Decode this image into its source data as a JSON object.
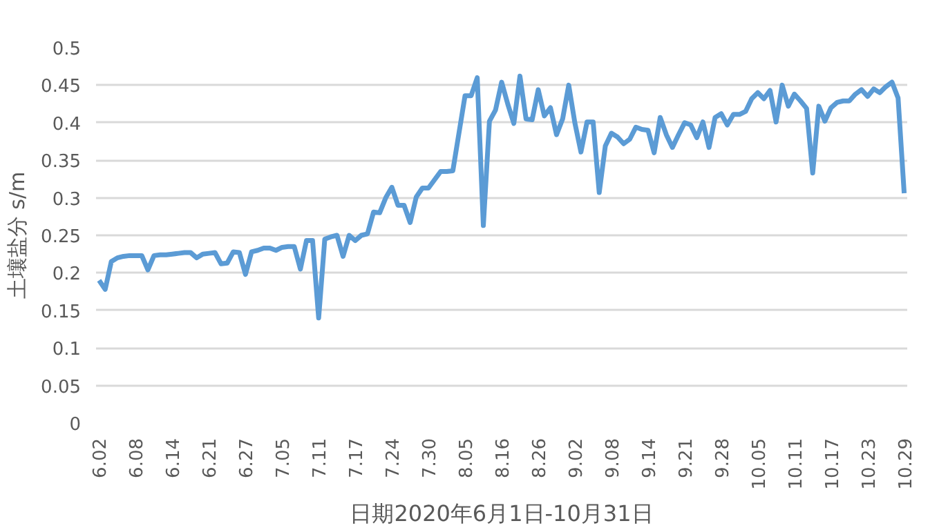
{
  "chart_data": {
    "type": "line",
    "xlabel": "日期2020年6月1日-10月31日",
    "ylabel": "土壤盐分 s/m",
    "categories": [
      "6.02",
      null,
      null,
      null,
      null,
      null,
      "6.08",
      null,
      null,
      null,
      null,
      null,
      "6.14",
      null,
      null,
      null,
      null,
      null,
      "6.21",
      null,
      null,
      null,
      null,
      null,
      "6.27",
      null,
      null,
      null,
      null,
      null,
      "7.05",
      null,
      null,
      null,
      null,
      null,
      "7.11",
      null,
      null,
      null,
      null,
      null,
      "7.17",
      null,
      null,
      null,
      null,
      null,
      "7.24",
      null,
      null,
      null,
      null,
      null,
      "7.30",
      null,
      null,
      null,
      null,
      null,
      "8.05",
      null,
      null,
      null,
      null,
      null,
      "8.16",
      null,
      null,
      null,
      null,
      null,
      "8.26",
      null,
      null,
      null,
      null,
      null,
      "9.02",
      null,
      null,
      null,
      null,
      null,
      "9.08",
      null,
      null,
      null,
      null,
      null,
      "9.14",
      null,
      null,
      null,
      null,
      null,
      "9.21",
      null,
      null,
      null,
      null,
      null,
      "9.28",
      null,
      null,
      null,
      null,
      null,
      "10.05",
      null,
      null,
      null,
      null,
      null,
      "10.11",
      null,
      null,
      null,
      null,
      null,
      "10.17",
      null,
      null,
      null,
      null,
      null,
      "10.23",
      null,
      null,
      null,
      null,
      null,
      "10.29"
    ],
    "values": [
      0.19,
      0.178,
      0.215,
      0.22,
      0.222,
      0.223,
      0.223,
      0.223,
      0.204,
      0.223,
      0.224,
      0.224,
      0.225,
      0.226,
      0.227,
      0.227,
      0.22,
      0.225,
      0.226,
      0.227,
      0.212,
      0.213,
      0.228,
      0.227,
      0.198,
      0.228,
      0.23,
      0.233,
      0.233,
      0.23,
      0.234,
      0.235,
      0.235,
      0.205,
      0.243,
      0.243,
      0.14,
      0.245,
      0.248,
      0.25,
      0.222,
      0.25,
      0.243,
      0.25,
      0.252,
      0.281,
      0.28,
      0.3,
      0.314,
      0.29,
      0.29,
      0.267,
      0.301,
      0.313,
      0.313,
      0.324,
      0.335,
      0.335,
      0.336,
      0.386,
      0.436,
      0.436,
      0.46,
      0.263,
      0.402,
      0.417,
      0.454,
      0.425,
      0.399,
      0.462,
      0.405,
      0.404,
      0.444,
      0.409,
      0.42,
      0.384,
      0.405,
      0.45,
      0.4,
      0.361,
      0.401,
      0.401,
      0.307,
      0.369,
      0.386,
      0.381,
      0.372,
      0.378,
      0.394,
      0.391,
      0.39,
      0.36,
      0.407,
      0.384,
      0.367,
      0.384,
      0.4,
      0.397,
      0.38,
      0.401,
      0.367,
      0.407,
      0.412,
      0.397,
      0.411,
      0.411,
      0.415,
      0.432,
      0.44,
      0.432,
      0.443,
      0.401,
      0.45,
      0.422,
      0.438,
      0.429,
      0.419,
      0.333,
      0.422,
      0.402,
      0.42,
      0.427,
      0.429,
      0.429,
      0.438,
      0.444,
      0.435,
      0.445,
      0.44,
      0.448,
      0.454,
      0.433,
      0.306
    ],
    "color": "#5b9bd5",
    "ylim": [
      0,
      0.5
    ],
    "yticks": [
      0,
      0.05,
      0.1,
      0.15,
      0.2,
      0.25,
      0.3,
      0.35,
      0.4,
      0.45,
      0.5
    ],
    "grid": "y"
  }
}
